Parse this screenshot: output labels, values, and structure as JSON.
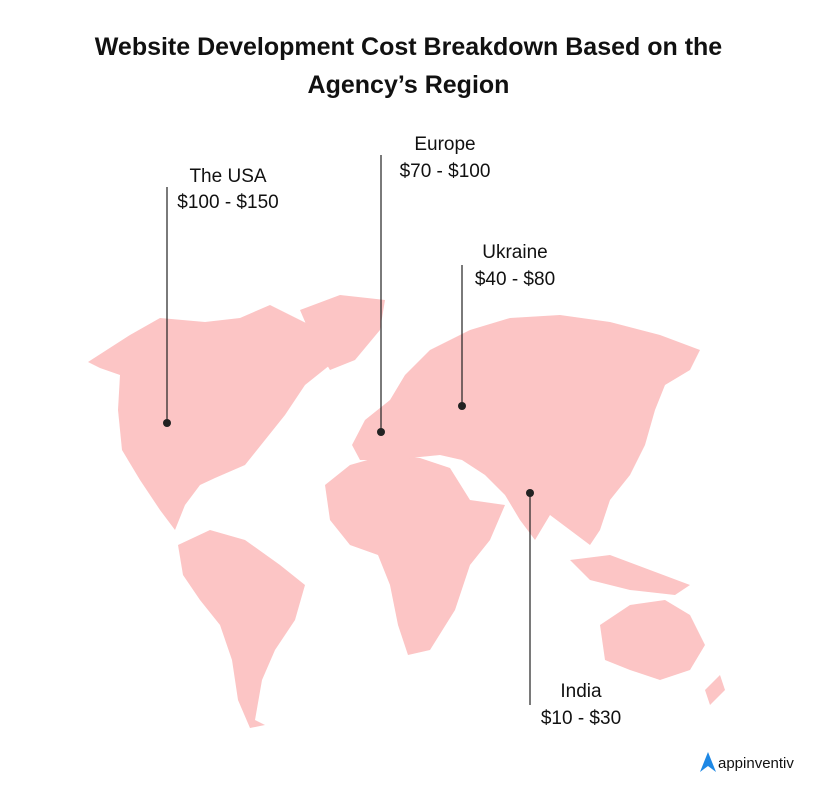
{
  "title": "Website Development Cost Breakdown Based on the Agency’s Region",
  "regions": [
    {
      "name": "The USA",
      "cost": "$100 - $150"
    },
    {
      "name": "Europe",
      "cost": "$70 - $100"
    },
    {
      "name": "Ukraine",
      "cost": "$40 - $80"
    },
    {
      "name": "India",
      "cost": "$10 - $30"
    }
  ],
  "logo": "appinventiv"
}
